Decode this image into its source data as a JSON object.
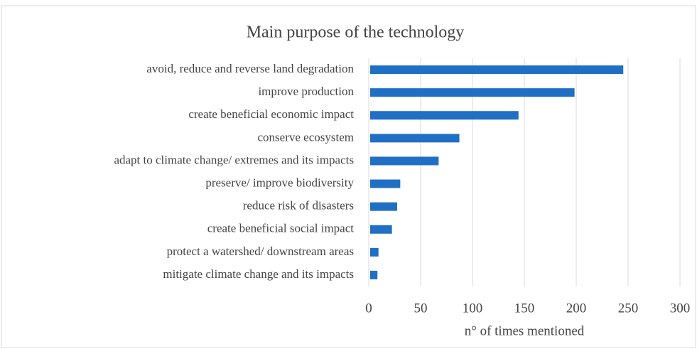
{
  "chart_data": {
    "type": "hbar",
    "title": "Main purpose of the technology",
    "categories": [
      "avoid, reduce and reverse land degradation",
      "improve production",
      "create beneficial economic impact",
      "conserve ecosystem",
      "adapt to climate change/ extremes and its impacts",
      "preserve/ improve biodiversity",
      "reduce risk of disasters",
      "create beneficial social impact",
      "protect a watershed/ downstream areas",
      "mitigate climate change and its impacts"
    ],
    "values": [
      244,
      197,
      143,
      86,
      66,
      29,
      26,
      21,
      8,
      7
    ],
    "color": "#1f6fc5",
    "xlim": [
      0,
      300
    ],
    "xticks": [
      0,
      50,
      100,
      150,
      200,
      250,
      300
    ],
    "x_label": "n° of times mentioned",
    "grid": true
  }
}
